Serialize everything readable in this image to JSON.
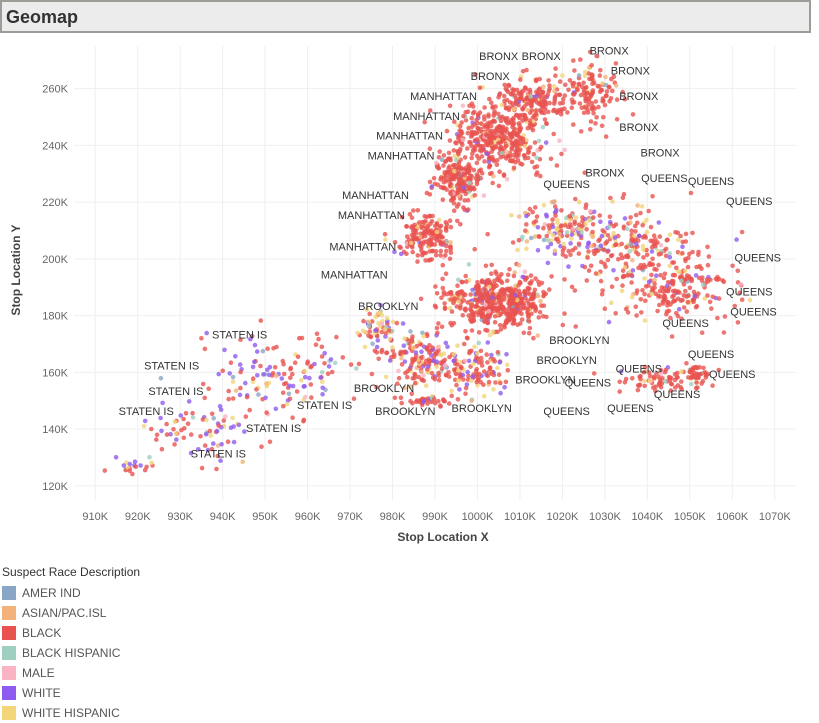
{
  "title": "Geomap",
  "chart_data": {
    "type": "scatter",
    "xlabel": "Stop Location X",
    "ylabel": "Stop Location Y",
    "xlim": [
      905000,
      1075000
    ],
    "ylim": [
      115000,
      275000
    ],
    "x_ticks": [
      910000,
      920000,
      930000,
      940000,
      950000,
      960000,
      970000,
      980000,
      990000,
      1000000,
      1010000,
      1020000,
      1030000,
      1040000,
      1050000,
      1060000,
      1070000
    ],
    "x_tick_labels": [
      "910K",
      "920K",
      "930K",
      "940K",
      "950K",
      "960K",
      "970K",
      "980K",
      "990K",
      "1000K",
      "1010K",
      "1020K",
      "1030K",
      "1040K",
      "1050K",
      "1060K",
      "1070K"
    ],
    "y_ticks": [
      120000,
      140000,
      160000,
      180000,
      200000,
      220000,
      240000,
      260000
    ],
    "y_tick_labels": [
      "120K",
      "140K",
      "160K",
      "180K",
      "200K",
      "220K",
      "240K",
      "260K"
    ],
    "grid": true,
    "legend": {
      "title": "Suspect Race Description",
      "placement": "bottom-left",
      "entries": [
        {
          "name": "AMER IND",
          "color": "#8aa6c6"
        },
        {
          "name": "ASIAN/PAC.ISL",
          "color": "#f2b27a"
        },
        {
          "name": "BLACK",
          "color": "#e8524f"
        },
        {
          "name": "BLACK HISPANIC",
          "color": "#9ecfc0"
        },
        {
          "name": "MALE",
          "color": "#f9b3c3"
        },
        {
          "name": "WHITE",
          "color": "#8f5bef"
        },
        {
          "name": "WHITE HISPANIC",
          "color": "#f3d57a"
        }
      ]
    },
    "clusters": [
      {
        "x": 1005000,
        "y": 243000,
        "spread": [
          8000,
          9000
        ],
        "count": 420,
        "mix": [
          0.01,
          0.03,
          0.85,
          0.02,
          0.02,
          0.03,
          0.04
        ]
      },
      {
        "x": 1013000,
        "y": 256000,
        "spread": [
          5000,
          5000
        ],
        "count": 160,
        "mix": [
          0.01,
          0.03,
          0.84,
          0.03,
          0.02,
          0.02,
          0.05
        ]
      },
      {
        "x": 995000,
        "y": 228000,
        "spread": [
          4000,
          6000
        ],
        "count": 200,
        "mix": [
          0.01,
          0.02,
          0.86,
          0.02,
          0.02,
          0.03,
          0.04
        ]
      },
      {
        "x": 988000,
        "y": 208000,
        "spread": [
          5000,
          6000
        ],
        "count": 180,
        "mix": [
          0.01,
          0.03,
          0.84,
          0.02,
          0.02,
          0.03,
          0.05
        ]
      },
      {
        "x": 1027000,
        "y": 258000,
        "spread": [
          6000,
          8000
        ],
        "count": 130,
        "mix": [
          0.01,
          0.04,
          0.82,
          0.02,
          0.02,
          0.03,
          0.06
        ]
      },
      {
        "x": 1005000,
        "y": 185000,
        "spread": [
          9000,
          7000
        ],
        "count": 520,
        "mix": [
          0.01,
          0.02,
          0.86,
          0.02,
          0.02,
          0.03,
          0.04
        ]
      },
      {
        "x": 1020000,
        "y": 210000,
        "spread": [
          8000,
          6000
        ],
        "count": 140,
        "mix": [
          0.02,
          0.08,
          0.45,
          0.05,
          0.02,
          0.13,
          0.25
        ]
      },
      {
        "x": 1035000,
        "y": 205000,
        "spread": [
          12000,
          10000
        ],
        "count": 200,
        "mix": [
          0.01,
          0.06,
          0.66,
          0.03,
          0.02,
          0.1,
          0.12
        ]
      },
      {
        "x": 1047000,
        "y": 190000,
        "spread": [
          10000,
          9000
        ],
        "count": 220,
        "mix": [
          0.01,
          0.03,
          0.82,
          0.02,
          0.02,
          0.05,
          0.05
        ]
      },
      {
        "x": 987000,
        "y": 165000,
        "spread": [
          7000,
          7000
        ],
        "count": 180,
        "mix": [
          0.01,
          0.03,
          0.62,
          0.03,
          0.02,
          0.15,
          0.14
        ]
      },
      {
        "x": 1000000,
        "y": 160000,
        "spread": [
          6000,
          6000
        ],
        "count": 110,
        "mix": [
          0.01,
          0.03,
          0.64,
          0.03,
          0.02,
          0.17,
          0.1
        ]
      },
      {
        "x": 1042000,
        "y": 157000,
        "spread": [
          7000,
          3000
        ],
        "count": 70,
        "mix": [
          0.01,
          0.02,
          0.84,
          0.02,
          0.02,
          0.04,
          0.05
        ]
      },
      {
        "x": 1052000,
        "y": 159000,
        "spread": [
          3000,
          3000
        ],
        "count": 40,
        "mix": [
          0.01,
          0.02,
          0.86,
          0.02,
          0.02,
          0.03,
          0.04
        ]
      },
      {
        "x": 955000,
        "y": 160000,
        "spread": [
          12000,
          10000
        ],
        "count": 130,
        "mix": [
          0.01,
          0.02,
          0.55,
          0.02,
          0.02,
          0.28,
          0.1
        ]
      },
      {
        "x": 935000,
        "y": 140000,
        "spread": [
          10000,
          8000
        ],
        "count": 80,
        "mix": [
          0.01,
          0.02,
          0.55,
          0.02,
          0.02,
          0.28,
          0.1
        ]
      },
      {
        "x": 918000,
        "y": 128000,
        "spread": [
          4000,
          3000
        ],
        "count": 20,
        "mix": [
          0.01,
          0.02,
          0.6,
          0.02,
          0.02,
          0.23,
          0.1
        ]
      },
      {
        "x": 988000,
        "y": 150000,
        "spread": [
          4000,
          1500
        ],
        "count": 40,
        "mix": [
          0.01,
          0.02,
          0.85,
          0.02,
          0.02,
          0.04,
          0.04
        ]
      },
      {
        "x": 977000,
        "y": 175000,
        "spread": [
          4000,
          5000
        ],
        "count": 60,
        "mix": [
          0.01,
          0.03,
          0.3,
          0.03,
          0.02,
          0.25,
          0.36
        ]
      }
    ],
    "annotations": [
      {
        "text": "BRONX",
        "x": 1005000,
        "y": 270000
      },
      {
        "text": "BRONX",
        "x": 1015000,
        "y": 270000
      },
      {
        "text": "BRONX",
        "x": 1031000,
        "y": 272000
      },
      {
        "text": "BRONX",
        "x": 1036000,
        "y": 265000
      },
      {
        "text": "BRONX",
        "x": 1003000,
        "y": 263000
      },
      {
        "text": "BRONX",
        "x": 1038000,
        "y": 256000
      },
      {
        "text": "BRONX",
        "x": 1038000,
        "y": 245000
      },
      {
        "text": "BRONX",
        "x": 1043000,
        "y": 236000
      },
      {
        "text": "BRONX",
        "x": 1030000,
        "y": 229000
      },
      {
        "text": "MANHATTAN",
        "x": 992000,
        "y": 256000
      },
      {
        "text": "MANHATTAN",
        "x": 988000,
        "y": 249000
      },
      {
        "text": "MANHATTAN",
        "x": 984000,
        "y": 242000
      },
      {
        "text": "MANHATTAN",
        "x": 982000,
        "y": 235000
      },
      {
        "text": "MANHATTAN",
        "x": 976000,
        "y": 221000
      },
      {
        "text": "MANHATTAN",
        "x": 975000,
        "y": 214000
      },
      {
        "text": "MANHATTAN",
        "x": 973000,
        "y": 203000
      },
      {
        "text": "MANHATTAN",
        "x": 971000,
        "y": 193000
      },
      {
        "text": "QUEENS",
        "x": 1021000,
        "y": 225000
      },
      {
        "text": "QUEENS",
        "x": 1044000,
        "y": 227000
      },
      {
        "text": "QUEENS",
        "x": 1055000,
        "y": 226000
      },
      {
        "text": "QUEENS",
        "x": 1064000,
        "y": 219000
      },
      {
        "text": "QUEENS",
        "x": 1066000,
        "y": 199000
      },
      {
        "text": "QUEENS",
        "x": 1064000,
        "y": 187000
      },
      {
        "text": "QUEENS",
        "x": 1065000,
        "y": 180000
      },
      {
        "text": "QUEENS",
        "x": 1049000,
        "y": 176000
      },
      {
        "text": "QUEENS",
        "x": 1055000,
        "y": 165000
      },
      {
        "text": "QUEENS",
        "x": 1060000,
        "y": 158000
      },
      {
        "text": "QUEENS",
        "x": 1038000,
        "y": 160000
      },
      {
        "text": "QUEENS",
        "x": 1026000,
        "y": 155000
      },
      {
        "text": "QUEENS",
        "x": 1047000,
        "y": 151000
      },
      {
        "text": "QUEENS",
        "x": 1036000,
        "y": 146000
      },
      {
        "text": "QUEENS",
        "x": 1021000,
        "y": 145000
      },
      {
        "text": "BROOKLYN",
        "x": 979000,
        "y": 182000
      },
      {
        "text": "BROOKLYN",
        "x": 1024000,
        "y": 170000
      },
      {
        "text": "BROOKLYN",
        "x": 1021000,
        "y": 163000
      },
      {
        "text": "BROOKLYN",
        "x": 1016000,
        "y": 156000
      },
      {
        "text": "BROOKLYN",
        "x": 978000,
        "y": 153000
      },
      {
        "text": "BROOKLYN",
        "x": 1001000,
        "y": 146000
      },
      {
        "text": "BROOKLYN",
        "x": 983000,
        "y": 145000
      },
      {
        "text": "STATEN IS",
        "x": 944000,
        "y": 172000
      },
      {
        "text": "STATEN IS",
        "x": 928000,
        "y": 161000
      },
      {
        "text": "STATEN IS",
        "x": 929000,
        "y": 152000
      },
      {
        "text": "STATEN IS",
        "x": 922000,
        "y": 145000
      },
      {
        "text": "STATEN IS",
        "x": 964000,
        "y": 147000
      },
      {
        "text": "STATEN IS",
        "x": 952000,
        "y": 139000
      },
      {
        "text": "STATEN IS",
        "x": 939000,
        "y": 130000
      }
    ]
  }
}
